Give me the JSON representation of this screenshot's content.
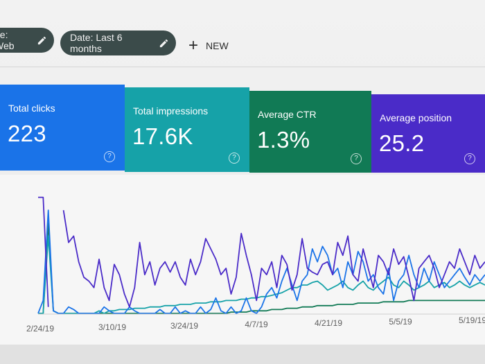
{
  "toolbar": {
    "type_chip": "pe: Web",
    "date_chip": "Date: Last 6 months",
    "new_label": "NEW"
  },
  "metrics": [
    {
      "label": "Total clicks",
      "value": "223",
      "color": "#1a73e8"
    },
    {
      "label": "Total impressions",
      "value": "17.6K",
      "color": "#16a2a8"
    },
    {
      "label": "Average CTR",
      "value": "1.3%",
      "color": "#117a55"
    },
    {
      "label": "Average position",
      "value": "25.2",
      "color": "#4a2bc8"
    }
  ],
  "help_glyph": "?",
  "icons": {
    "edit": "pencil-icon",
    "add": "plus-icon",
    "help": "help-circle-icon"
  },
  "chart_data": {
    "type": "line",
    "categories": [
      "2/24/19",
      "3/10/19",
      "3/24/19",
      "4/7/19",
      "4/21/19",
      "5/5/19",
      "5/19/19"
    ],
    "x": [
      0,
      1,
      2,
      3,
      4,
      5,
      6,
      7,
      8,
      9,
      10,
      11,
      12,
      13,
      14,
      15,
      16,
      17,
      18,
      19,
      20,
      21,
      22,
      23,
      24,
      25,
      26,
      27,
      28,
      29,
      30,
      31,
      32,
      33,
      34,
      35,
      36,
      37,
      38,
      39,
      40,
      41,
      42,
      43,
      44,
      45,
      46,
      47,
      48,
      49,
      50,
      51,
      52,
      53,
      54,
      55,
      56,
      57,
      58,
      59,
      60,
      61,
      62,
      63,
      64,
      65,
      66,
      67,
      68,
      69,
      70,
      71,
      72,
      73,
      74,
      75,
      76,
      77,
      78,
      79,
      80,
      81,
      82,
      83,
      84,
      85,
      86,
      87,
      88
    ],
    "series": [
      {
        "color": "#4a2bc8",
        "values": [
          0.9,
          0.9,
          0.05,
          null,
          null,
          0.8,
          0.55,
          0.6,
          0.4,
          0.28,
          0.25,
          0.2,
          0.42,
          0.2,
          0.1,
          0.38,
          0.3,
          0.15,
          0.05,
          0.2,
          0.55,
          0.3,
          0.4,
          0.22,
          0.35,
          0.4,
          0.32,
          0.4,
          0.28,
          0.22,
          0.42,
          0.3,
          0.4,
          0.58,
          0.5,
          0.42,
          0.3,
          0.35,
          0.15,
          0.28,
          0.62,
          0.45,
          0.3,
          0.1,
          0.35,
          0.3,
          0.4,
          0.2,
          0.45,
          0.38,
          0.18,
          0.3,
          0.58,
          0.35,
          0.32,
          0.3,
          0.38,
          0.4,
          0.3,
          0.55,
          0.45,
          0.6,
          0.3,
          0.25,
          0.5,
          0.35,
          0.2,
          0.45,
          0.4,
          0.3,
          0.5,
          0.38,
          0.44,
          0.28,
          0.1,
          0.35,
          0.4,
          0.45,
          0.35,
          0.2,
          0.3,
          0.4,
          0.35,
          0.5,
          0.4,
          0.3,
          0.45,
          0.35,
          0.4
        ]
      },
      {
        "color": "#1a73e8",
        "values": [
          0.0,
          0.1,
          0.8,
          0.02,
          0.0,
          0.0,
          0.05,
          0.03,
          0.0,
          0.0,
          0.0,
          0.0,
          0.0,
          0.05,
          0.02,
          0.0,
          0.0,
          0.0,
          0.05,
          0.02,
          0.0,
          0.0,
          0.0,
          0.0,
          0.03,
          0.0,
          0.0,
          0.05,
          0.0,
          0.02,
          0.0,
          0.0,
          0.05,
          0.0,
          0.03,
          0.12,
          0.02,
          0.0,
          0.05,
          0.0,
          0.02,
          0.12,
          0.02,
          0.0,
          0.05,
          0.15,
          0.2,
          0.12,
          0.25,
          0.35,
          0.22,
          0.1,
          0.25,
          0.3,
          0.5,
          0.4,
          0.52,
          0.45,
          0.3,
          0.35,
          0.2,
          0.4,
          0.3,
          0.48,
          0.4,
          0.25,
          0.3,
          0.2,
          0.15,
          0.35,
          0.1,
          0.25,
          0.3,
          0.45,
          0.3,
          0.2,
          0.35,
          0.25,
          0.4,
          0.3,
          0.2,
          0.25,
          0.3,
          0.35,
          0.28,
          0.22,
          0.3,
          0.25,
          0.3
        ]
      },
      {
        "color": "#16a2a8",
        "values": [
          0.0,
          0.0,
          0.6,
          0.02,
          0.0,
          0.0,
          0.0,
          0.0,
          0.0,
          0.0,
          0.0,
          0.0,
          0.02,
          0.0,
          0.02,
          0.02,
          0.03,
          0.03,
          0.03,
          0.04,
          0.04,
          0.04,
          0.05,
          0.05,
          0.05,
          0.06,
          0.06,
          0.06,
          0.07,
          0.07,
          0.07,
          0.08,
          0.08,
          0.08,
          0.09,
          0.09,
          0.09,
          0.1,
          0.1,
          0.1,
          0.11,
          0.11,
          0.12,
          0.12,
          0.13,
          0.13,
          0.14,
          0.15,
          0.16,
          0.18,
          0.2,
          0.2,
          0.22,
          0.22,
          0.24,
          0.25,
          0.22,
          0.18,
          0.2,
          0.22,
          0.25,
          0.2,
          0.18,
          0.22,
          0.25,
          0.2,
          0.18,
          0.22,
          0.25,
          0.28,
          0.22,
          0.2,
          0.25,
          0.22,
          0.18,
          0.2,
          0.22,
          0.25,
          0.2,
          0.22,
          0.24,
          0.2,
          0.22,
          0.25,
          0.22,
          0.2,
          0.22,
          0.24,
          0.22
        ]
      },
      {
        "color": "#117a55",
        "values": [
          0.0,
          0.0,
          0.7,
          0.02,
          0.0,
          0.0,
          0.0,
          0.0,
          0.0,
          0.0,
          0.0,
          0.0,
          0.0,
          0.0,
          0.0,
          0.0,
          0.0,
          0.0,
          0.0,
          0.0,
          0.0,
          0.0,
          0.0,
          0.0,
          0.0,
          0.0,
          0.0,
          0.0,
          0.0,
          0.0,
          0.0,
          0.0,
          0.0,
          0.0,
          0.0,
          0.0,
          0.0,
          0.0,
          0.01,
          0.01,
          0.01,
          0.01,
          0.02,
          0.02,
          0.02,
          0.02,
          0.03,
          0.03,
          0.03,
          0.04,
          0.04,
          0.04,
          0.05,
          0.05,
          0.05,
          0.06,
          0.06,
          0.06,
          0.06,
          0.07,
          0.07,
          0.07,
          0.07,
          0.08,
          0.08,
          0.08,
          0.08,
          0.08,
          0.09,
          0.09,
          0.09,
          0.09,
          0.09,
          0.1,
          0.1,
          0.1,
          0.1,
          0.1,
          0.1,
          0.1,
          0.1,
          0.1,
          0.1,
          0.1,
          0.1,
          0.1,
          0.1,
          0.1,
          0.1
        ]
      }
    ],
    "grid": false
  }
}
